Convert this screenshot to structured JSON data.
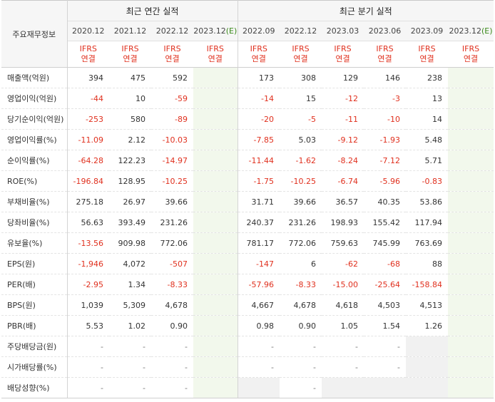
{
  "header": {
    "row_label": "주요재무정보",
    "annual_group": "최근 연간 실적",
    "quarter_group": "최근 분기 실적",
    "annual_periods": [
      "2020.12",
      "2021.12",
      "2022.12"
    ],
    "annual_estimate": {
      "period": "2023.12",
      "mark": "(E)"
    },
    "quarter_periods": [
      "2022.09",
      "2022.12",
      "2023.03",
      "2023.06",
      "2023.09"
    ],
    "quarter_estimate": {
      "period": "2023.12",
      "mark": "(E)"
    },
    "basis_line1": "IFRS",
    "basis_line2": "연결"
  },
  "rows": [
    {
      "label": "매출액(억원)",
      "annual": [
        "394",
        "475",
        "592"
      ],
      "quarter": [
        "173",
        "308",
        "129",
        "146",
        "238"
      ]
    },
    {
      "label": "영업이익(억원)",
      "annual": [
        "-44",
        "10",
        "-59"
      ],
      "quarter": [
        "-14",
        "15",
        "-12",
        "-3",
        "13"
      ]
    },
    {
      "label": "당기순이익(억원)",
      "annual": [
        "-253",
        "580",
        "-89"
      ],
      "quarter": [
        "-20",
        "-5",
        "-11",
        "-10",
        "14"
      ]
    },
    {
      "label": "영업이익률(%)",
      "annual": [
        "-11.09",
        "2.12",
        "-10.03"
      ],
      "quarter": [
        "-7.85",
        "5.03",
        "-9.12",
        "-1.93",
        "5.48"
      ]
    },
    {
      "label": "순이익률(%)",
      "annual": [
        "-64.28",
        "122.23",
        "-14.97"
      ],
      "quarter": [
        "-11.44",
        "-1.62",
        "-8.24",
        "-7.12",
        "5.71"
      ]
    },
    {
      "label": "ROE(%)",
      "annual": [
        "-196.84",
        "128.95",
        "-10.25"
      ],
      "quarter": [
        "-1.75",
        "-10.25",
        "-6.74",
        "-5.96",
        "-0.83"
      ]
    },
    {
      "label": "부채비율(%)",
      "annual": [
        "275.18",
        "26.97",
        "39.66"
      ],
      "quarter": [
        "31.71",
        "39.66",
        "36.57",
        "40.35",
        "53.86"
      ]
    },
    {
      "label": "당좌비율(%)",
      "annual": [
        "56.63",
        "393.49",
        "231.26"
      ],
      "quarter": [
        "240.37",
        "231.26",
        "198.93",
        "155.42",
        "117.94"
      ]
    },
    {
      "label": "유보율(%)",
      "annual": [
        "-13.56",
        "909.98",
        "772.06"
      ],
      "quarter": [
        "781.17",
        "772.06",
        "759.63",
        "745.99",
        "763.69"
      ]
    },
    {
      "label": "EPS(원)",
      "annual": [
        "-1,946",
        "4,072",
        "-507"
      ],
      "quarter": [
        "-147",
        "6",
        "-62",
        "-68",
        "88"
      ]
    },
    {
      "label": "PER(배)",
      "annual": [
        "-2.95",
        "1.34",
        "-8.33"
      ],
      "quarter": [
        "-57.96",
        "-8.33",
        "-15.00",
        "-25.64",
        "-158.84"
      ]
    },
    {
      "label": "BPS(원)",
      "annual": [
        "1,039",
        "5,309",
        "4,678"
      ],
      "quarter": [
        "4,667",
        "4,678",
        "4,618",
        "4,503",
        "4,513"
      ]
    },
    {
      "label": "PBR(배)",
      "annual": [
        "5.53",
        "1.02",
        "0.90"
      ],
      "quarter": [
        "0.98",
        "0.90",
        "1.05",
        "1.54",
        "1.26"
      ]
    },
    {
      "label": "주당배당금(원)",
      "annual": [
        "-",
        "-",
        "-"
      ],
      "quarter": [
        "-",
        "-",
        "-",
        "-",
        ""
      ]
    },
    {
      "label": "시가배당률(%)",
      "annual": [
        "-",
        "-",
        "-"
      ],
      "quarter": [
        "-",
        "-",
        "-",
        "-",
        ""
      ]
    },
    {
      "label": "배당성향(%)",
      "annual": [
        "-",
        "-",
        "-"
      ],
      "quarter": [
        "",
        "-",
        "",
        "",
        ""
      ]
    }
  ],
  "colors": {
    "negative": "#e0301e",
    "estimate_bg": "#f2f8ec",
    "empty_bg": "#f1f1f1",
    "header_bg": "#f6f6f6"
  }
}
